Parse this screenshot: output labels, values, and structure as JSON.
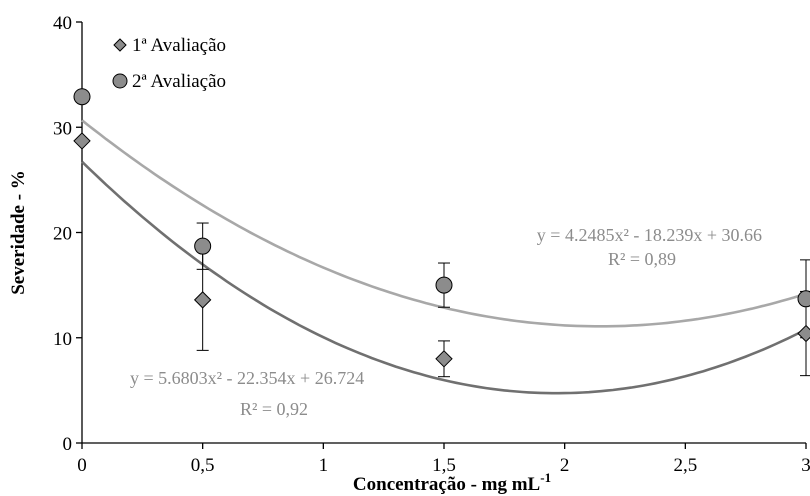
{
  "chart_data": {
    "type": "scatter",
    "title": "",
    "xlabel": "Concentração - mg mL",
    "xlabel_sup": "-1",
    "ylabel": "Severidade - %",
    "xlim": [
      0,
      3
    ],
    "ylim": [
      0,
      40
    ],
    "x_ticks": [
      0,
      0.5,
      1,
      1.5,
      2,
      2.5,
      3
    ],
    "x_tick_labels": [
      "0",
      "0,5",
      "1",
      "1,5",
      "2",
      "2,5",
      "3"
    ],
    "y_ticks": [
      0,
      10,
      20,
      30,
      40
    ],
    "y_tick_labels": [
      "0",
      "10",
      "20",
      "30",
      "40"
    ],
    "grid": false,
    "legend_position": "top-left",
    "series": [
      {
        "name": "1ª Avaliação",
        "marker": "diamond",
        "color": "#8c8c8c",
        "trend_color": "#707070",
        "x": [
          0,
          0.5,
          1.5,
          3
        ],
        "y": [
          28.7,
          13.6,
          8.0,
          10.4
        ],
        "error": [
          null,
          4.8,
          1.7,
          4.0
        ],
        "fit": {
          "a": 5.6803,
          "b": -22.354,
          "c": 26.724
        },
        "equation": "y = 5.6803x² - 22.354x + 26.724",
        "r2": "R² = 0,92"
      },
      {
        "name": "2ª Avaliação",
        "marker": "circle",
        "color": "#8c8c8c",
        "trend_color": "#a8a8a8",
        "x": [
          0,
          0.5,
          1.5,
          3
        ],
        "y": [
          32.9,
          18.7,
          15.0,
          13.7
        ],
        "error": [
          null,
          2.2,
          2.1,
          3.7
        ],
        "fit": {
          "a": 4.2485,
          "b": -18.239,
          "c": 30.66
        },
        "equation": "y = 4.2485x² - 18.239x + 30.66",
        "r2": "R² = 0,89"
      }
    ]
  }
}
